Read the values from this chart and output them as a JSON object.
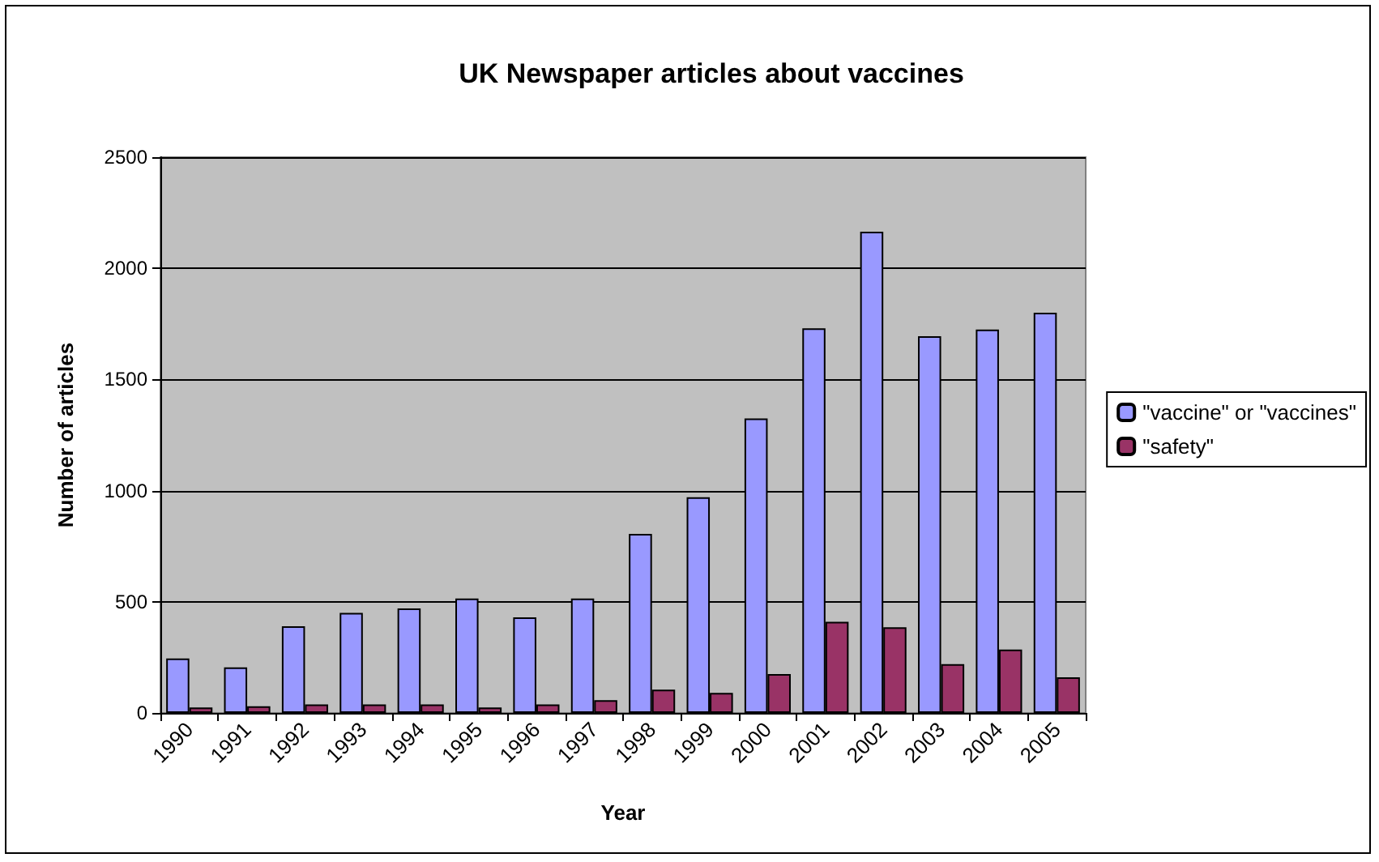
{
  "chart_data": {
    "type": "bar",
    "title": "UK Newspaper articles about vaccines",
    "xlabel": "Year",
    "ylabel": "Number of articles",
    "categories": [
      "1990",
      "1991",
      "1992",
      "1993",
      "1994",
      "1995",
      "1996",
      "1997",
      "1998",
      "1999",
      "2000",
      "2001",
      "2002",
      "2003",
      "2004",
      "2005"
    ],
    "series": [
      {
        "name": "\"vaccine\" or \"vaccines\"",
        "color": "#9999ff",
        "values": [
          245,
          205,
          390,
          450,
          470,
          515,
          430,
          515,
          805,
          970,
          1325,
          1730,
          2165,
          1695,
          1725,
          1800
        ]
      },
      {
        "name": "\"safety\"",
        "color": "#993366",
        "values": [
          25,
          30,
          38,
          38,
          38,
          25,
          38,
          57,
          105,
          90,
          175,
          410,
          385,
          220,
          285,
          160
        ]
      }
    ],
    "ylim": [
      0,
      2500
    ],
    "yticks": [
      0,
      500,
      1000,
      1500,
      2000,
      2500
    ],
    "grid": "y",
    "legend": "right"
  }
}
